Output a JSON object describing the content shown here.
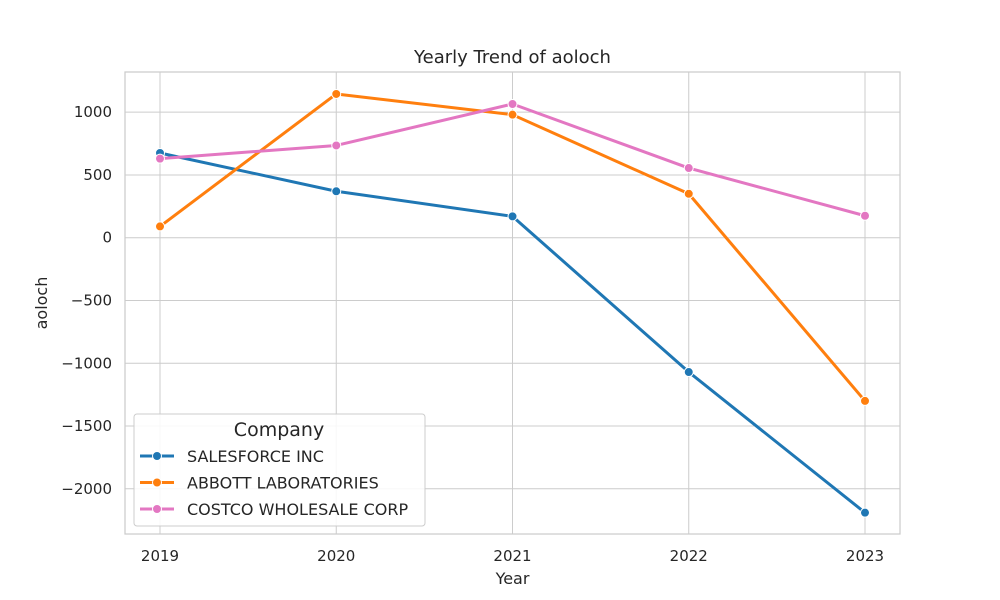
{
  "chart_data": {
    "type": "line",
    "title": "Yearly Trend of aoloch",
    "xlabel": "Year",
    "ylabel": "aoloch",
    "categories": [
      "2019",
      "2020",
      "2021",
      "2022",
      "2023"
    ],
    "yticks": [
      1000,
      500,
      0,
      -500,
      -1000,
      -1500,
      -2000
    ],
    "ytick_labels": [
      "1000",
      "500",
      "0",
      "−500",
      "−1000",
      "−1500",
      "−2000"
    ],
    "ylim": [
      -2360,
      1320
    ],
    "grid": true,
    "legend": {
      "title": "Company",
      "placement": "lower-left"
    },
    "series": [
      {
        "name": "SALESFORCE INC",
        "color": "#1f77b4",
        "values": [
          675,
          370,
          170,
          -1070,
          -2190
        ]
      },
      {
        "name": "ABBOTT LABORATORIES",
        "color": "#ff7f0e",
        "values": [
          90,
          1145,
          980,
          350,
          -1300
        ]
      },
      {
        "name": "COSTCO WHOLESALE CORP",
        "color": "#e377c2",
        "values": [
          630,
          735,
          1065,
          555,
          175
        ]
      }
    ]
  }
}
